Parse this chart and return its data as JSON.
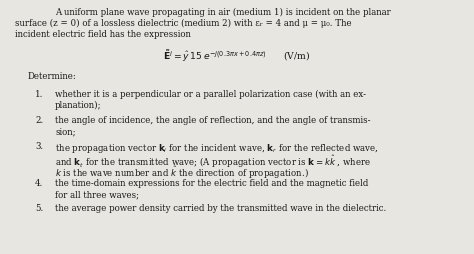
{
  "bg_color": "#e8e6e0",
  "text_color": "#1a1a1a",
  "figsize": [
    4.74,
    2.54
  ],
  "dpi": 100,
  "fs": 6.2,
  "para_line1": "A uniform plane wave propagating in air (medium 1) is incident on the planar",
  "para_line2": "surface (z = 0) of a lossless dielectric (medium 2) with εᵣ = 4 and μ = μ₀. The",
  "para_line3": "incident electric field has the expression",
  "determine": "Determine:",
  "item1a": "whether it is a perpendicular or a parallel polarization case (with an ex-",
  "item1b": "planation);",
  "item2a": "the angle of incidence, the angle of reflection, and the angle of transmis-",
  "item2b": "sion;",
  "item3a": "the propagation vector kᵢ for the incident wave, kᵣ for the reflected wave,",
  "item3b": "and kₜ for the transmitted wave; (A propagation vector is k = k k , where",
  "item3c": "k is the wave number and k the direction of propagation.)",
  "item4a": "the time-domain expressions for the electric field and the magnetic field",
  "item4b": "for all three waves;",
  "item5": "the average power density carried by the transmitted wave in the dielectric."
}
